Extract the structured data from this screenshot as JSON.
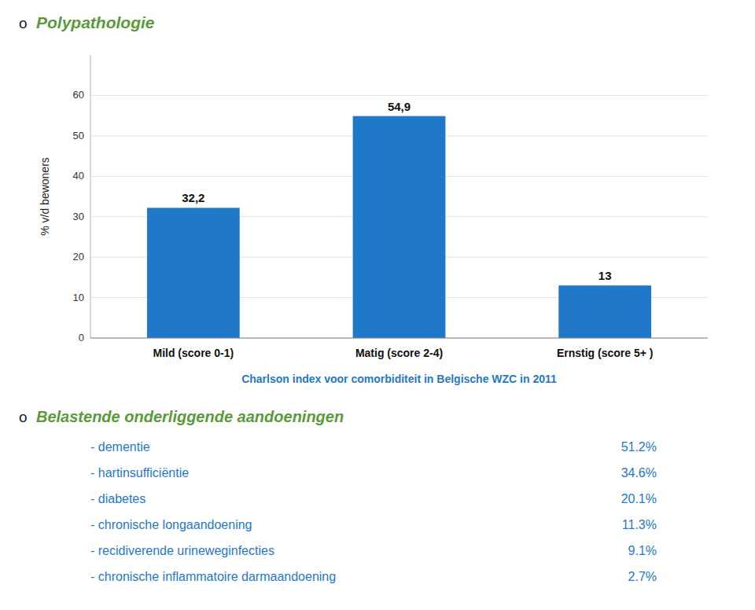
{
  "chart_data": [
    {
      "type": "bar",
      "title": "Polypathologie",
      "annotations": [
        "o"
      ],
      "subtitle": "Charlson index voor comorbiditeit in Belgische WZC in 2011",
      "categories": [
        "Mild (score 0-1)",
        "Matig (score 2-4)",
        "Ernstig (score 5+ )"
      ],
      "values": [
        32.2,
        54.9,
        13
      ],
      "value_labels": [
        "32,2",
        "54,9",
        "13"
      ],
      "data_labels": true,
      "color": "#1F78C8",
      "y_label": "% v/d bewoners",
      "ylim": [
        0,
        70
      ],
      "yticks": [
        0,
        10,
        20,
        30,
        40,
        50,
        60
      ],
      "grid": true
    },
    {
      "type": "list",
      "title": "Belastende onderliggende aandoeningen",
      "annotations": [
        "o"
      ],
      "categories": [
        "- dementie",
        "- hartinsufficiëntie",
        "- diabetes",
        "- chronische longaandoening",
        "- recidiverende urineweginfecties",
        "- chronische inflammatoire darmaandoening"
      ],
      "values": [
        51.2,
        34.6,
        20.1,
        11.3,
        9.1,
        2.7
      ],
      "value_labels": [
        "51.2%",
        "34.6%",
        "20.1%",
        "11.3%",
        "9.1%",
        "2.7%"
      ],
      "data_labels": true
    }
  ]
}
